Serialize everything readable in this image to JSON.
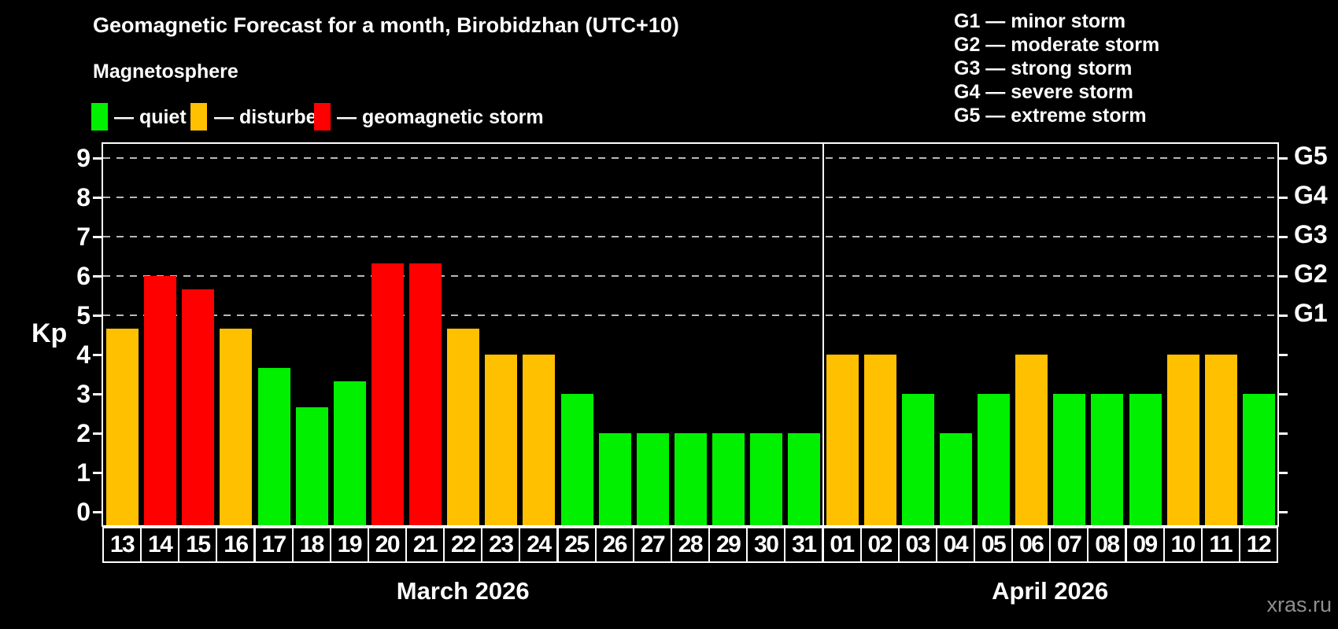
{
  "title": "Geomagnetic Forecast for a month, Birobidzhan (UTC+10)",
  "subtitle": "Magnetosphere",
  "legend": {
    "items": [
      {
        "key": "quiet",
        "label": "— quiet",
        "color": "#00f000"
      },
      {
        "key": "disturbed",
        "label": "— disturbed",
        "color": "#ffc000"
      },
      {
        "key": "storm",
        "label": "— geomagnetic storm",
        "color": "#ff0000"
      }
    ]
  },
  "g_legend": [
    "G1 — minor storm",
    "G2 — moderate storm",
    "G3 — strong storm",
    "G4 — severe storm",
    "G5 — extreme storm"
  ],
  "axis": {
    "kp_label": "Kp",
    "y_ticks": [
      "0",
      "1",
      "2",
      "3",
      "4",
      "5",
      "6",
      "7",
      "8",
      "9"
    ]
  },
  "watermark": "xras.ru",
  "chart_data": {
    "type": "bar",
    "title": "Geomagnetic Forecast for a month, Birobidzhan (UTC+10)",
    "xlabel": "",
    "ylabel": "Kp",
    "ylim": [
      0,
      9
    ],
    "grid": "dashed horizontal lines at Kp 5,6,7,8,9 only",
    "legend_position": "top-left",
    "categories": [
      "13",
      "14",
      "15",
      "16",
      "17",
      "18",
      "19",
      "20",
      "21",
      "22",
      "23",
      "24",
      "25",
      "26",
      "27",
      "28",
      "29",
      "30",
      "31",
      "01",
      "02",
      "03",
      "04",
      "05",
      "06",
      "07",
      "08",
      "09",
      "10",
      "11",
      "12"
    ],
    "values": [
      4.67,
      6.0,
      5.67,
      4.67,
      3.67,
      2.67,
      3.33,
      6.33,
      6.33,
      4.67,
      4.0,
      4.0,
      3.0,
      2.0,
      2.0,
      2.0,
      2.0,
      2.0,
      2.0,
      4.0,
      4.0,
      3.0,
      2.0,
      3.0,
      4.0,
      3.0,
      3.0,
      3.0,
      4.0,
      4.0,
      3.0
    ],
    "statuses": [
      "disturbed",
      "storm",
      "storm",
      "disturbed",
      "quiet",
      "quiet",
      "quiet",
      "storm",
      "storm",
      "disturbed",
      "disturbed",
      "disturbed",
      "quiet",
      "quiet",
      "quiet",
      "quiet",
      "quiet",
      "quiet",
      "quiet",
      "disturbed",
      "disturbed",
      "quiet",
      "quiet",
      "quiet",
      "disturbed",
      "quiet",
      "quiet",
      "quiet",
      "disturbed",
      "disturbed",
      "quiet"
    ],
    "palette": {
      "quiet": "#00f000",
      "disturbed": "#ffc000",
      "storm": "#ff0000"
    },
    "months": [
      {
        "label": "March 2026",
        "days": 19
      },
      {
        "label": "April 2026",
        "days": 12
      }
    ],
    "g_levels": [
      {
        "kp": 5,
        "label": "G1"
      },
      {
        "kp": 6,
        "label": "G2"
      },
      {
        "kp": 7,
        "label": "G3"
      },
      {
        "kp": 8,
        "label": "G4"
      },
      {
        "kp": 9,
        "label": "G5"
      }
    ]
  }
}
